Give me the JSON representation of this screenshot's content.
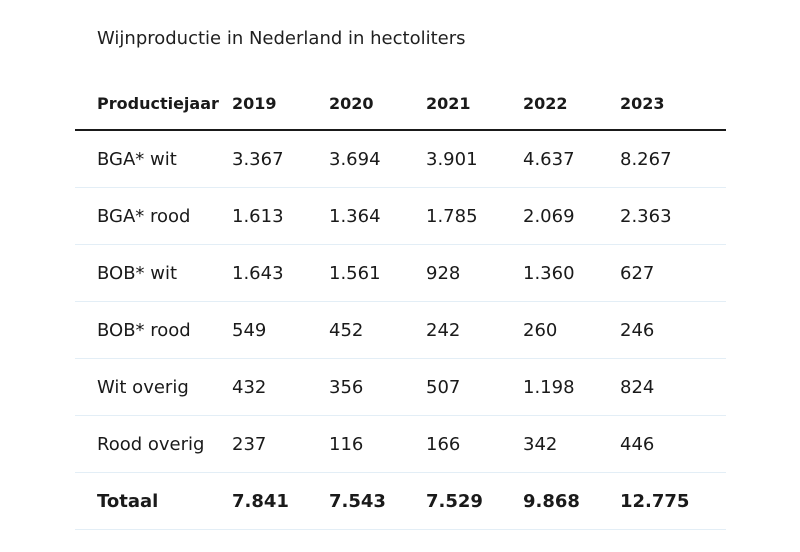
{
  "caption": "Wijnproductie in Nederland in hectoliters",
  "table": {
    "header": [
      "Productiejaar",
      "2019",
      "2020",
      "2021",
      "2022",
      "2023"
    ],
    "rows": [
      {
        "label": "BGA* wit",
        "values": [
          "3.367",
          "3.694",
          "3.901",
          "4.637",
          "8.267"
        ]
      },
      {
        "label": "BGA* rood",
        "values": [
          "1.613",
          "1.364",
          "1.785",
          "2.069",
          "2.363"
        ]
      },
      {
        "label": "BOB* wit",
        "values": [
          "1.643",
          "1.561",
          "928",
          "1.360",
          "627"
        ]
      },
      {
        "label": "BOB* rood",
        "values": [
          "549",
          "452",
          "242",
          "260",
          "246"
        ]
      },
      {
        "label": "Wit overig",
        "values": [
          "432",
          "356",
          "507",
          "1.198",
          "824"
        ]
      },
      {
        "label": "Rood overig",
        "values": [
          "237",
          "116",
          "166",
          "342",
          "446"
        ]
      }
    ],
    "total": {
      "label": "Totaal",
      "values": [
        "7.841",
        "7.543",
        "7.529",
        "9.868",
        "12.775"
      ]
    }
  },
  "colors": {
    "text": "#1a1a1a",
    "header_rule": "#1a1a1a",
    "row_divider": "#e3eef6",
    "background": "#ffffff"
  }
}
